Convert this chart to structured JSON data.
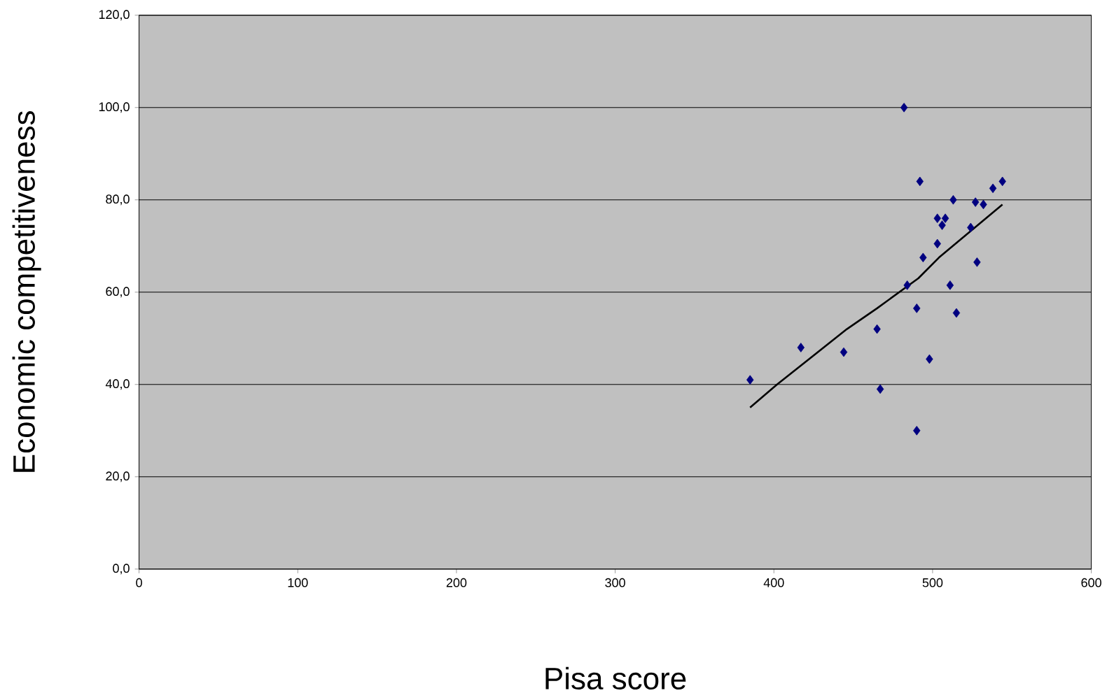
{
  "chart_data": {
    "type": "scatter",
    "xlabel": "Pisa score",
    "ylabel": "Economic competitiveness",
    "xlim": [
      0,
      600
    ],
    "xticks": [
      0,
      100,
      200,
      300,
      400,
      500,
      600
    ],
    "ylim": [
      0,
      120
    ],
    "yticks": [
      {
        "value": 0,
        "label": "0,0"
      },
      {
        "value": 20,
        "label": "20,0"
      },
      {
        "value": 40,
        "label": "40,0"
      },
      {
        "value": 60,
        "label": "60,0"
      },
      {
        "value": 80,
        "label": "80,0"
      },
      {
        "value": 100,
        "label": "100,0"
      },
      {
        "value": 120,
        "label": "120,0"
      }
    ],
    "grid": "y",
    "marker": "diamond",
    "series": [
      {
        "color": "#000080",
        "x": [
          385,
          417,
          444,
          465,
          467,
          482,
          484,
          490,
          490,
          492,
          494,
          498,
          503,
          503,
          506,
          508,
          511,
          513,
          515,
          524,
          527,
          528,
          532,
          538,
          544
        ],
        "values": [
          41,
          48,
          47,
          52,
          39,
          100,
          61.5,
          56.5,
          30,
          84,
          67.5,
          45.5,
          70.5,
          76,
          74.5,
          76,
          61.5,
          80,
          55.5,
          74,
          79.5,
          66.5,
          79,
          82.5,
          84
        ]
      },
      {
        "type": "line",
        "color": "#000000",
        "marker": "none",
        "x": [
          385,
          402,
          446,
          465,
          491,
          504,
          544
        ],
        "values": [
          35,
          40,
          52,
          56.5,
          63,
          67.5,
          79
        ]
      }
    ]
  }
}
